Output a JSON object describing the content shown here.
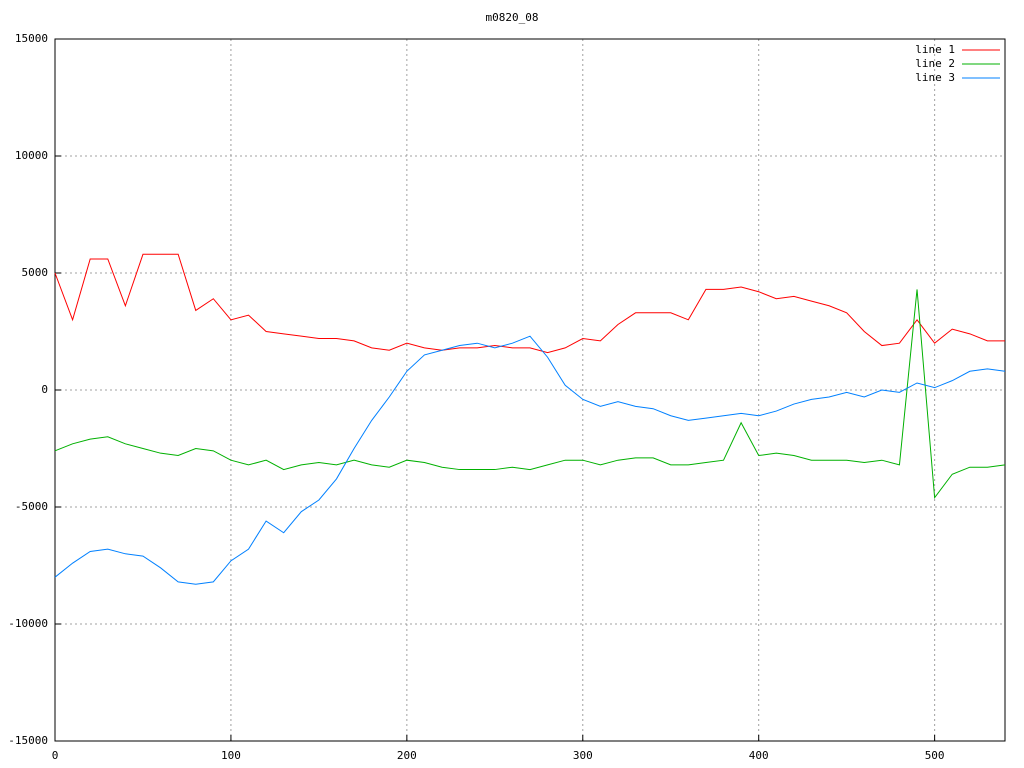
{
  "chart_data": {
    "type": "line",
    "title": "m0820_08",
    "x": [
      0,
      10,
      20,
      30,
      40,
      50,
      60,
      70,
      80,
      90,
      100,
      110,
      120,
      130,
      140,
      150,
      160,
      170,
      180,
      190,
      200,
      210,
      220,
      230,
      240,
      250,
      260,
      270,
      280,
      290,
      300,
      310,
      320,
      330,
      340,
      350,
      360,
      370,
      380,
      390,
      400,
      410,
      420,
      430,
      440,
      450,
      460,
      470,
      480,
      490,
      500,
      510,
      520,
      530,
      540
    ],
    "series": [
      {
        "name": "line 1",
        "color": "#ff0000",
        "values": [
          5000,
          3000,
          5600,
          5600,
          3600,
          5800,
          5800,
          5800,
          3400,
          3900,
          3000,
          3200,
          2500,
          2400,
          2300,
          2200,
          2200,
          2100,
          1800,
          1700,
          2000,
          1800,
          1700,
          1800,
          1800,
          1900,
          1800,
          1800,
          1600,
          1800,
          2200,
          2100,
          2800,
          3300,
          3300,
          3300,
          3000,
          4300,
          4300,
          4400,
          4200,
          3900,
          4000,
          3800,
          3600,
          3300,
          2500,
          1900,
          2000,
          3000,
          2000,
          2600,
          2400,
          2100,
          2100
        ]
      },
      {
        "name": "line 2",
        "color": "#00b000",
        "values": [
          -2600,
          -2300,
          -2100,
          -2000,
          -2300,
          -2500,
          -2700,
          -2800,
          -2500,
          -2600,
          -3000,
          -3200,
          -3000,
          -3400,
          -3200,
          -3100,
          -3200,
          -3000,
          -3200,
          -3300,
          -3000,
          -3100,
          -3300,
          -3400,
          -3400,
          -3400,
          -3300,
          -3400,
          -3200,
          -3000,
          -3000,
          -3200,
          -3000,
          -2900,
          -2900,
          -3200,
          -3200,
          -3100,
          -3000,
          -1400,
          -2800,
          -2700,
          -2800,
          -3000,
          -3000,
          -3000,
          -3100,
          -3000,
          -3200,
          4300,
          -4600,
          -3600,
          -3300,
          -3300,
          -3200
        ]
      },
      {
        "name": "line 3",
        "color": "#0080ff",
        "values": [
          -8000,
          -7400,
          -6900,
          -6800,
          -7000,
          -7100,
          -7600,
          -8200,
          -8300,
          -8200,
          -7300,
          -6800,
          -5600,
          -6100,
          -5200,
          -4700,
          -3800,
          -2500,
          -1300,
          -300,
          800,
          1500,
          1700,
          1900,
          2000,
          1800,
          2000,
          2300,
          1400,
          200,
          -400,
          -700,
          -500,
          -700,
          -800,
          -1100,
          -1300,
          -1200,
          -1100,
          -1000,
          -1100,
          -900,
          -600,
          -400,
          -300,
          -100,
          -300,
          0,
          -100,
          300,
          100,
          400,
          800,
          900,
          800
        ]
      }
    ],
    "xlim": [
      0,
      540
    ],
    "xticks": [
      0,
      100,
      200,
      300,
      400,
      500
    ],
    "ylim": [
      -15000,
      15000
    ],
    "yticks": [
      -15000,
      -10000,
      -5000,
      0,
      5000,
      10000,
      15000
    ],
    "grid": true,
    "legend": "top-right"
  }
}
